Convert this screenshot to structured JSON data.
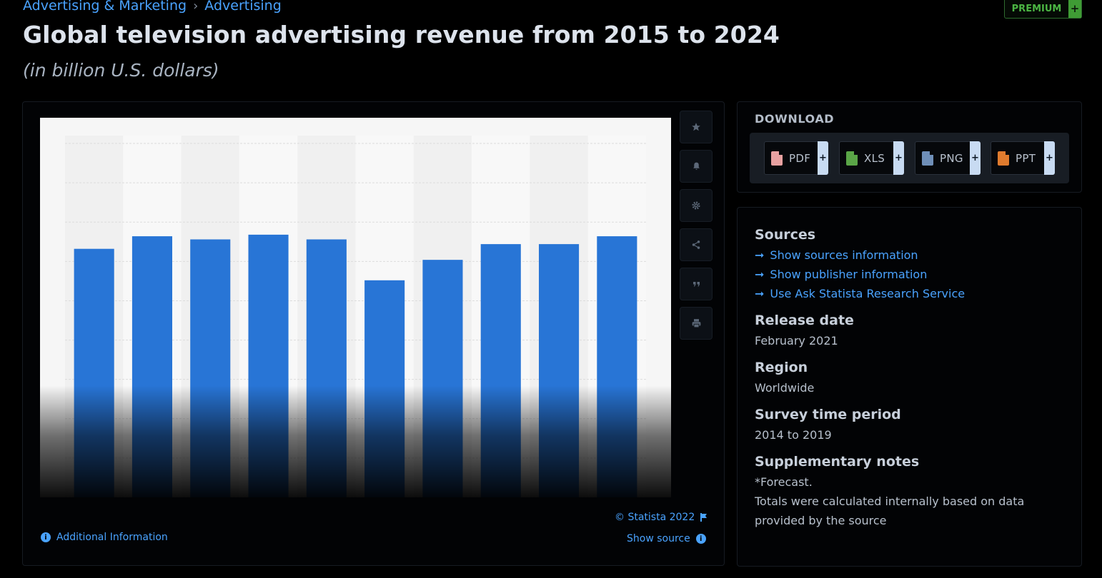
{
  "breadcrumb": {
    "items": [
      "Advertising & Marketing",
      "Advertising"
    ],
    "separator": "›"
  },
  "premium": {
    "label": "PREMIUM",
    "plus": "+"
  },
  "header": {
    "title": "Global television advertising revenue from 2015 to 2024",
    "subtitle": "(in billion U.S. dollars)"
  },
  "toolbar": {
    "icons": [
      "star-icon",
      "bell-icon",
      "gear-icon",
      "share-icon",
      "quote-icon",
      "print-icon"
    ]
  },
  "chart_footer": {
    "copyright": "© Statista 2022",
    "show_source": "Show source",
    "additional_info": "Additional Information"
  },
  "download": {
    "title": "DOWNLOAD",
    "buttons": [
      {
        "label": "PDF",
        "color": "#e8a1a1"
      },
      {
        "label": "XLS",
        "color": "#5aa547"
      },
      {
        "label": "PNG",
        "color": "#6f8fb8"
      },
      {
        "label": "PPT",
        "color": "#e07b2e"
      }
    ],
    "plus": "+"
  },
  "meta": {
    "sources_title": "Sources",
    "links": [
      "Show sources information",
      "Show publisher information",
      "Use Ask Statista Research Service"
    ],
    "release_title": "Release date",
    "release_value": "February 2021",
    "region_title": "Region",
    "region_value": "Worldwide",
    "period_title": "Survey time period",
    "period_value": "2014 to 2019",
    "notes_title": "Supplementary notes",
    "notes_lines": [
      "*Forecast.",
      "Totals were calculated internally based on data",
      "provided by the source"
    ]
  },
  "colors": {
    "bar": "#2875d6",
    "accent": "#4aa3ff",
    "premium": "#3f9c35"
  },
  "chart_data": {
    "type": "bar",
    "categories": [
      "",
      "",
      "",
      "",
      "",
      "",
      "",
      "",
      "",
      ""
    ],
    "values": [
      158,
      166,
      164,
      167,
      164,
      138,
      151,
      161,
      161,
      166
    ],
    "ylim": [
      0,
      230
    ],
    "grid": true,
    "title": "Global television advertising revenue from 2015 to 2024",
    "ylabel": "",
    "xlabel": ""
  }
}
